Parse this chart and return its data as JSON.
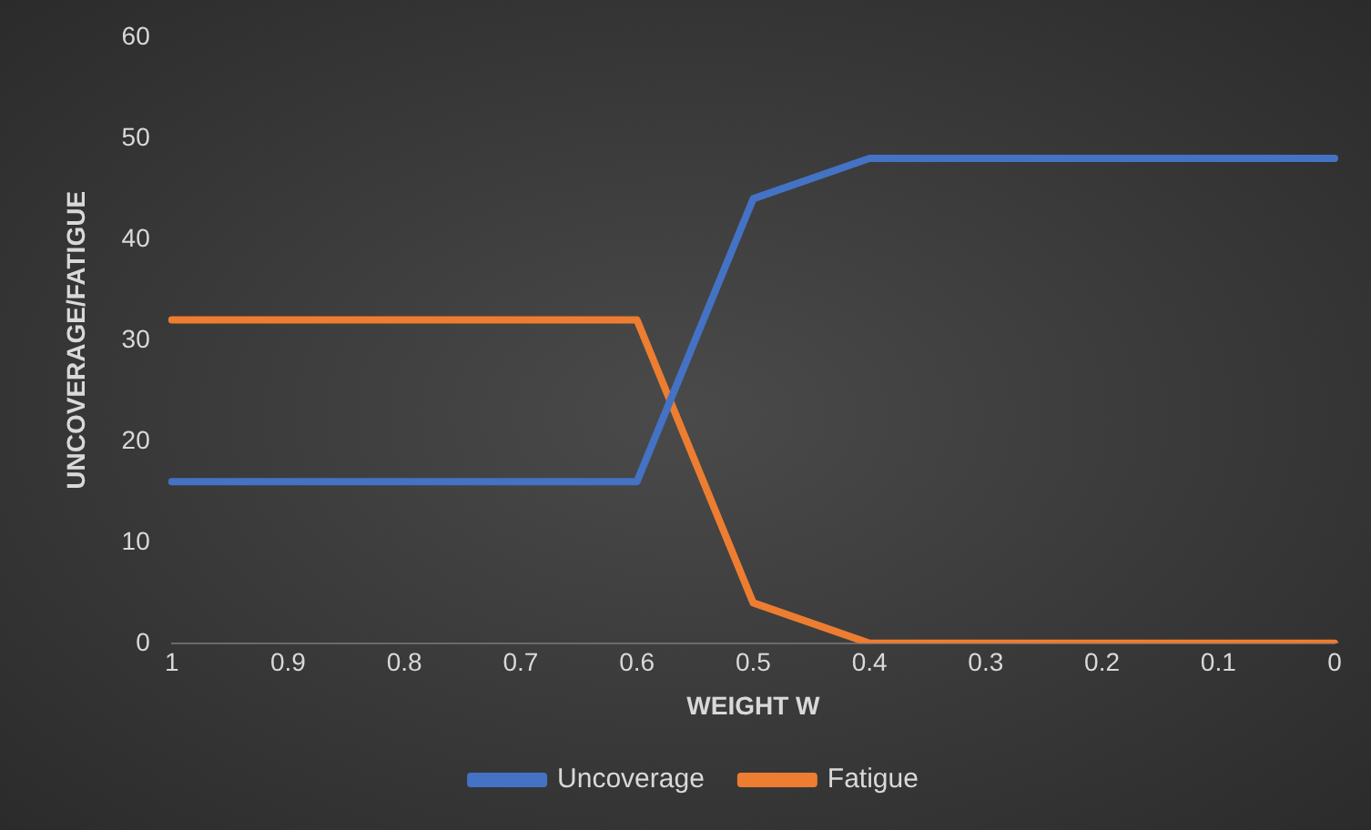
{
  "chart_data": {
    "type": "line",
    "xlabel": "WEIGHT W",
    "ylabel": "UNCOVERAGE/FATIGUE",
    "categories": [
      "1",
      "0.9",
      "0.8",
      "0.7",
      "0.6",
      "0.5",
      "0.4",
      "0.3",
      "0.2",
      "0.1",
      "0"
    ],
    "series": [
      {
        "name": "Uncoverage",
        "color": "#4472c4",
        "values": [
          16,
          16,
          16,
          16,
          16,
          44,
          48,
          48,
          48,
          48,
          48
        ]
      },
      {
        "name": "Fatigue",
        "color": "#ed7d31",
        "values": [
          32,
          32,
          32,
          32,
          32,
          4,
          0,
          0,
          0,
          0,
          0
        ]
      }
    ],
    "ylim": [
      0,
      60
    ],
    "yticks": [
      0,
      10,
      20,
      30,
      40,
      50,
      60
    ],
    "grid": false,
    "legend": "bottom",
    "marker": "none",
    "line_style": "solid"
  }
}
